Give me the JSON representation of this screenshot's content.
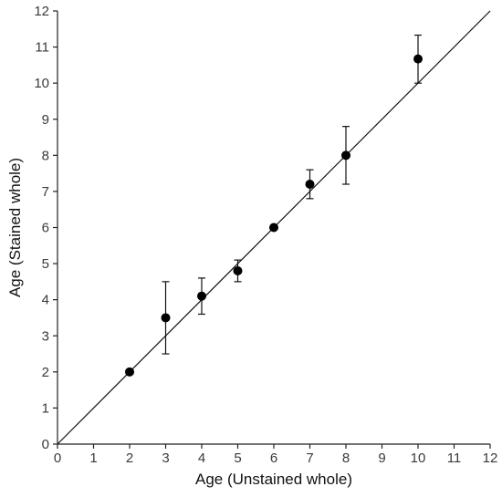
{
  "chart_data": {
    "type": "scatter",
    "title": "",
    "xlabel": "Age (Unstained whole)",
    "ylabel": "Age (Stained whole)",
    "xlim": [
      0,
      12
    ],
    "ylim": [
      0,
      12
    ],
    "xticks": [
      0,
      1,
      2,
      3,
      4,
      5,
      6,
      7,
      8,
      9,
      10,
      11,
      12
    ],
    "yticks": [
      0,
      1,
      2,
      3,
      4,
      5,
      6,
      7,
      8,
      9,
      10,
      11,
      12
    ],
    "grid": false,
    "reference_line": {
      "x": [
        0,
        12
      ],
      "y": [
        0,
        12
      ]
    },
    "series": [
      {
        "points": [
          {
            "x": 2,
            "y": 2.0,
            "lo": 2.0,
            "hi": 2.0
          },
          {
            "x": 3,
            "y": 3.5,
            "lo": 2.5,
            "hi": 4.5
          },
          {
            "x": 4,
            "y": 4.1,
            "lo": 3.6,
            "hi": 4.6
          },
          {
            "x": 5,
            "y": 4.8,
            "lo": 4.5,
            "hi": 5.1
          },
          {
            "x": 6,
            "y": 6.0,
            "lo": 6.0,
            "hi": 6.0
          },
          {
            "x": 7,
            "y": 7.2,
            "lo": 6.8,
            "hi": 7.6
          },
          {
            "x": 8,
            "y": 8.0,
            "lo": 7.2,
            "hi": 8.8
          },
          {
            "x": 10,
            "y": 10.67,
            "lo": 10.0,
            "hi": 11.33
          }
        ]
      }
    ]
  }
}
